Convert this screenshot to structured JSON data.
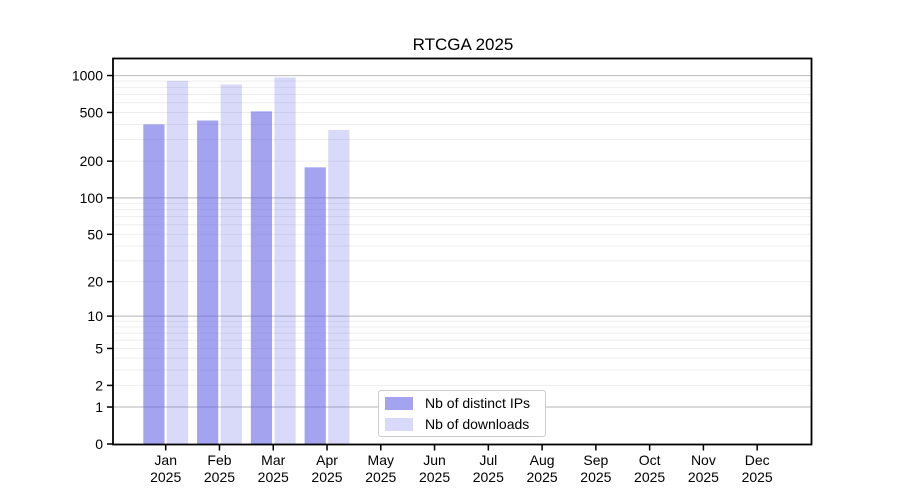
{
  "chart_data": {
    "type": "bar",
    "title": "RTCGA 2025",
    "x_months": [
      "Jan",
      "Feb",
      "Mar",
      "Apr",
      "May",
      "Jun",
      "Jul",
      "Aug",
      "Sep",
      "Oct",
      "Nov",
      "Dec"
    ],
    "x_year": "2025",
    "series": [
      {
        "name": "Nb of distinct IPs",
        "color": "rgba(102,102,230,0.6)",
        "values": [
          400,
          430,
          510,
          178,
          null,
          null,
          null,
          null,
          null,
          null,
          null,
          null
        ]
      },
      {
        "name": "Nb of downloads",
        "color": "rgba(102,102,230,0.25)",
        "values": [
          905,
          845,
          965,
          360,
          null,
          null,
          null,
          null,
          null,
          null,
          null,
          null
        ]
      }
    ],
    "y_ticks": [
      0,
      1,
      2,
      5,
      10,
      20,
      50,
      100,
      200,
      500,
      1000
    ],
    "y_scale": "log1p",
    "ylim": [
      0,
      1100
    ],
    "grid": {
      "on": true,
      "major_color": "#c3c3c3",
      "minor_color": "#ededed"
    },
    "axis_color": "#000000",
    "legend_position": "inside-bottom-center"
  }
}
